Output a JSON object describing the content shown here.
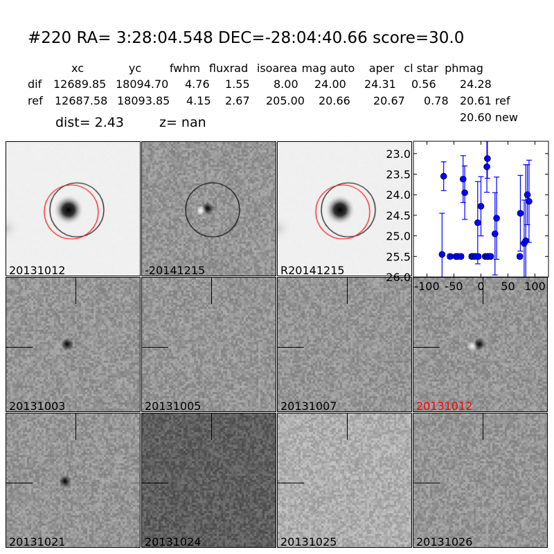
{
  "header": {
    "title": "#220   RA= 3:28:04.548 DEC=-28:04:40.66      score=30.0",
    "columns": [
      "xc",
      "yc",
      "fwhm",
      "fluxrad",
      "isoarea",
      "mag auto",
      "aper",
      "cl star",
      "phmag"
    ],
    "rows": [
      {
        "label": "dif",
        "values": [
          "12689.85",
          "18094.70",
          "4.76",
          "1.55",
          "8.00",
          "24.00",
          "24.31",
          "0.56",
          "24.28"
        ]
      },
      {
        "label": "ref",
        "values": [
          "12687.58",
          "18093.85",
          "4.15",
          "2.67",
          "205.00",
          "20.66",
          "20.67",
          "0.78",
          "20.61 ref"
        ]
      }
    ],
    "extra_phmag": "20.60 new",
    "dist": "dist=  2.43",
    "z": "z=   nan"
  },
  "stamps": [
    {
      "label": "20131012",
      "kind": "ref",
      "circles": true
    },
    {
      "label": "-20141215",
      "kind": "diff",
      "circles": "black"
    },
    {
      "label": "R20141215",
      "kind": "ref",
      "circles": true
    },
    {
      "label": "20131003",
      "kind": "noise"
    },
    {
      "label": "20131005",
      "kind": "noise"
    },
    {
      "label": "20131007",
      "kind": "noise"
    },
    {
      "label": "20131012",
      "kind": "detect",
      "label_color": "#ff0000"
    },
    {
      "label": "20131021",
      "kind": "noise"
    },
    {
      "label": "20131024",
      "kind": "noise"
    },
    {
      "label": "20131025",
      "kind": "noise"
    },
    {
      "label": "20131026",
      "kind": "noise"
    }
  ],
  "chart_data": {
    "type": "scatter",
    "xlim": [
      -125,
      125
    ],
    "ylim": [
      26.0,
      22.7
    ],
    "y_inverted": true,
    "xticks": [
      -100,
      -50,
      0,
      50,
      100
    ],
    "yticks": [
      "23.0",
      "23.5",
      "24.0",
      "24.5",
      "25.0",
      "25.5",
      "26.0"
    ],
    "color": "#0000ff",
    "points": [
      {
        "x": -72,
        "y": 25.45,
        "err": 1.0
      },
      {
        "x": -69,
        "y": 23.55,
        "err": 0.35
      },
      {
        "x": -57,
        "y": 25.5,
        "err": 0.05
      },
      {
        "x": -46,
        "y": 25.5,
        "err": 0.05
      },
      {
        "x": -43,
        "y": 25.5,
        "err": 0.05
      },
      {
        "x": -37,
        "y": 25.5,
        "err": 0.05
      },
      {
        "x": -33,
        "y": 23.62,
        "err": 0.57
      },
      {
        "x": -30,
        "y": 23.95,
        "err": 0.65
      },
      {
        "x": -17,
        "y": 25.5,
        "err": 0.05
      },
      {
        "x": -14,
        "y": 25.5,
        "err": 0.05
      },
      {
        "x": -10,
        "y": 25.5,
        "err": 0.05
      },
      {
        "x": -6,
        "y": 24.68,
        "err": 1.0
      },
      {
        "x": -5,
        "y": 25.5,
        "err": 0.05
      },
      {
        "x": 0,
        "y": 24.28,
        "err": 0.72
      },
      {
        "x": 8,
        "y": 25.5,
        "err": 0.05
      },
      {
        "x": 11,
        "y": 23.32,
        "err": 0.62
      },
      {
        "x": 12,
        "y": 23.12,
        "err": 0.48
      },
      {
        "x": 12,
        "y": 25.5,
        "err": 0.05
      },
      {
        "x": 15,
        "y": 25.5,
        "err": 0.05
      },
      {
        "x": 18,
        "y": 25.5,
        "err": 0.05
      },
      {
        "x": 26,
        "y": 24.95,
        "err": 1.0
      },
      {
        "x": 29,
        "y": 24.57,
        "err": 1.0
      },
      {
        "x": 72,
        "y": 25.5,
        "err": 0.05
      },
      {
        "x": 73,
        "y": 24.45,
        "err": 0.92
      },
      {
        "x": 80,
        "y": 25.18,
        "err": 1.05
      },
      {
        "x": 83,
        "y": 25.12,
        "err": 1.85
      },
      {
        "x": 86,
        "y": 24.0,
        "err": 0.73
      },
      {
        "x": 89,
        "y": 24.16,
        "err": 1.0
      }
    ]
  }
}
